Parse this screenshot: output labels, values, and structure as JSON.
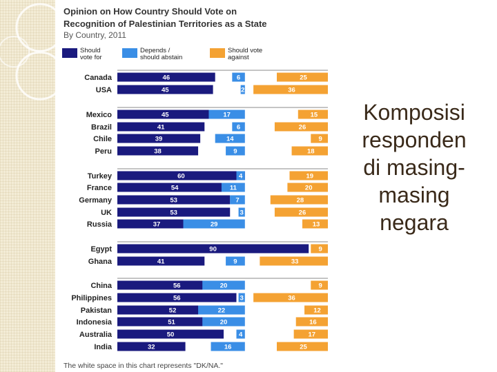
{
  "chart_data": {
    "type": "bar",
    "stacked": true,
    "orientation": "horizontal",
    "title": "Opinion on How Country Should Vote on Recognition of Palestinian Territories as a State",
    "title_lines": [
      "Opinion on How Country Should Vote on",
      "Recognition of Palestinian Territories as a State"
    ],
    "subtitle": "By Country, 2011",
    "legend_placement": "top",
    "legend": [
      {
        "lines": [
          "Should",
          "vote for"
        ],
        "color": "#1a1a7e"
      },
      {
        "lines": [
          "Depends /",
          "should abstain"
        ],
        "color": "#3a8ee6"
      },
      {
        "lines": [
          "Should vote",
          "against"
        ],
        "color": "#f4a233"
      }
    ],
    "categories": [
      "Canada",
      "USA",
      "Mexico",
      "Brazil",
      "Chile",
      "Peru",
      "Turkey",
      "France",
      "Germany",
      "UK",
      "Russia",
      "Egypt",
      "Ghana",
      "China",
      "Philippines",
      "Pakistan",
      "Indonesia",
      "Australia",
      "India"
    ],
    "groups": [
      [
        "Canada",
        "USA"
      ],
      [
        "Mexico",
        "Brazil",
        "Chile",
        "Peru"
      ],
      [
        "Turkey",
        "France",
        "Germany",
        "UK",
        "Russia"
      ],
      [
        "Egypt",
        "Ghana"
      ],
      [
        "China",
        "Philippines",
        "Pakistan",
        "Indonesia",
        "Australia",
        "India"
      ]
    ],
    "series": [
      {
        "name": "Should vote for",
        "color": "#1a1a7e",
        "values": [
          46,
          45,
          45,
          41,
          39,
          38,
          60,
          54,
          53,
          53,
          37,
          90,
          41,
          56,
          56,
          52,
          51,
          50,
          32
        ]
      },
      {
        "name": "Depends / should abstain",
        "color": "#3a8ee6",
        "values": [
          6,
          2,
          17,
          6,
          14,
          9,
          4,
          11,
          7,
          3,
          29,
          null,
          9,
          20,
          3,
          22,
          20,
          4,
          16
        ]
      },
      {
        "name": "Should vote against",
        "color": "#f4a233",
        "values": [
          25,
          36,
          15,
          26,
          9,
          18,
          19,
          20,
          28,
          26,
          13,
          9,
          33,
          9,
          36,
          12,
          16,
          17,
          25
        ]
      }
    ],
    "xlim": [
      0,
      100
    ],
    "grid": false,
    "footnote": "The white space in this chart represents \"DK/NA.\""
  },
  "slide_text": [
    "Komposisi",
    "responden",
    "di masing-",
    "masing",
    "negara"
  ],
  "colors": {
    "for": "#1a1a7e",
    "abstain": "#3a8ee6",
    "against": "#f4a233",
    "divider": "#8a8a8a"
  }
}
